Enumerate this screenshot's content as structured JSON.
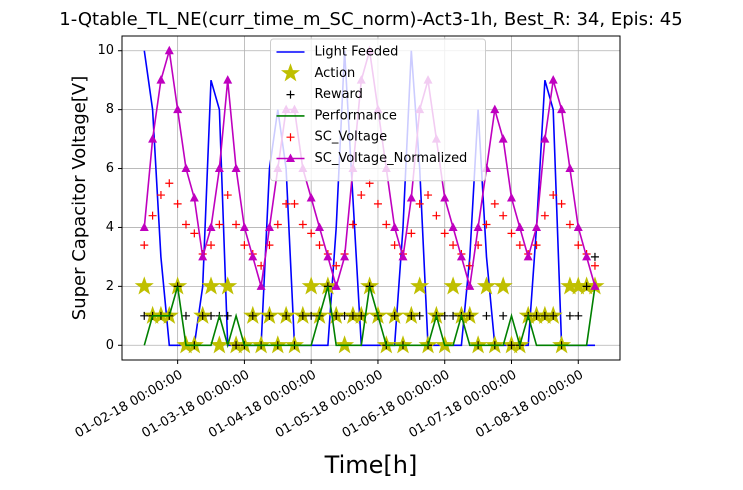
{
  "chart_data": {
    "type": "line",
    "title": "1-Qtable_TL_NE(curr_time_m_SC_norm)-Act3-1h, Best_R: 34, Epis: 45",
    "x_label": "Time[h]",
    "y_label": "Super Capacitor Voltage[V]",
    "x": [
      "01-01-18 12:00:00",
      "01-01-18 15:00:00",
      "01-01-18 18:00:00",
      "01-01-18 21:00:00",
      "01-02-18 00:00:00",
      "01-02-18 03:00:00",
      "01-02-18 06:00:00",
      "01-02-18 09:00:00",
      "01-02-18 12:00:00",
      "01-02-18 15:00:00",
      "01-02-18 18:00:00",
      "01-02-18 21:00:00",
      "01-03-18 00:00:00",
      "01-03-18 03:00:00",
      "01-03-18 06:00:00",
      "01-03-18 09:00:00",
      "01-03-18 12:00:00",
      "01-03-18 15:00:00",
      "01-03-18 18:00:00",
      "01-03-18 21:00:00",
      "01-04-18 00:00:00",
      "01-04-18 03:00:00",
      "01-04-18 06:00:00",
      "01-04-18 09:00:00",
      "01-04-18 12:00:00",
      "01-04-18 15:00:00",
      "01-04-18 18:00:00",
      "01-04-18 21:00:00",
      "01-05-18 00:00:00",
      "01-05-18 03:00:00",
      "01-05-18 06:00:00",
      "01-05-18 09:00:00",
      "01-05-18 12:00:00",
      "01-05-18 15:00:00",
      "01-05-18 18:00:00",
      "01-05-18 21:00:00",
      "01-06-18 00:00:00",
      "01-06-18 03:00:00",
      "01-06-18 06:00:00",
      "01-06-18 09:00:00",
      "01-06-18 12:00:00",
      "01-06-18 15:00:00",
      "01-06-18 18:00:00",
      "01-06-18 21:00:00",
      "01-07-18 00:00:00",
      "01-07-18 03:00:00",
      "01-07-18 06:00:00",
      "01-07-18 09:00:00",
      "01-07-18 12:00:00",
      "01-07-18 15:00:00",
      "01-07-18 18:00:00",
      "01-07-18 21:00:00",
      "01-08-18 00:00:00",
      "01-08-18 03:00:00",
      "01-08-18 06:00:00"
    ],
    "series": [
      {
        "name": "Light Feeded",
        "color": "#0000ff",
        "line": true,
        "marker": null,
        "values": [
          10,
          8,
          3,
          0,
          0,
          0,
          0,
          2,
          9,
          8,
          0,
          0,
          0,
          0,
          0,
          6,
          8,
          6,
          0,
          0,
          0,
          0,
          0,
          4,
          10,
          5,
          0,
          0,
          0,
          0,
          0,
          4,
          10,
          6,
          0,
          0,
          0,
          0,
          0,
          3,
          8,
          3,
          0,
          0,
          0,
          0,
          0,
          4,
          9,
          8,
          0,
          0,
          0,
          0,
          0
        ]
      },
      {
        "name": "Action",
        "color": "#bfbf00",
        "line": false,
        "marker": "star",
        "values": [
          2,
          1,
          1,
          1,
          2,
          0,
          0,
          1,
          2,
          0,
          2,
          0,
          0,
          1,
          0,
          1,
          0,
          1,
          0,
          1,
          2,
          1,
          2,
          1,
          0,
          1,
          1,
          2,
          1,
          0,
          1,
          0,
          1,
          2,
          0,
          1,
          0,
          2,
          1,
          1,
          0,
          2,
          0,
          2,
          0,
          0,
          1,
          1,
          1,
          1,
          0,
          2,
          2,
          2,
          2
        ]
      },
      {
        "name": "Reward",
        "color": "#000000",
        "line": false,
        "marker": "plus",
        "values": [
          1,
          1,
          1,
          1,
          2,
          1,
          0,
          1,
          1,
          1,
          1,
          0,
          0,
          1,
          0,
          1,
          0,
          1,
          0,
          1,
          1,
          1,
          2,
          1,
          1,
          1,
          1,
          2,
          1,
          0,
          1,
          0,
          1,
          1,
          0,
          1,
          1,
          1,
          1,
          1,
          0,
          1,
          0,
          1,
          0,
          0,
          1,
          1,
          1,
          1,
          0,
          1,
          1,
          2,
          3
        ]
      },
      {
        "name": "Performance",
        "color": "#008000",
        "line": true,
        "marker": null,
        "values": [
          0,
          1,
          1,
          1,
          2,
          0,
          0,
          0,
          0,
          1,
          0,
          1,
          0,
          0,
          0,
          0,
          0,
          0,
          0,
          0,
          0,
          1,
          2,
          0,
          0,
          0,
          0,
          2,
          1,
          0,
          0,
          0,
          0,
          0,
          0,
          1,
          0,
          0,
          1,
          0,
          0,
          0,
          0,
          0,
          1,
          0,
          1,
          0,
          0,
          0,
          0,
          0,
          0,
          0,
          2
        ]
      },
      {
        "name": "SC_Voltage",
        "color": "#ff0000",
        "line": false,
        "marker": "plus",
        "values": [
          3.4,
          4.4,
          5.1,
          5.5,
          4.8,
          4.1,
          3.8,
          3.1,
          3.4,
          4.1,
          5.1,
          4.1,
          3.4,
          3.1,
          2.7,
          3.4,
          4.1,
          4.8,
          4.8,
          4.1,
          3.8,
          3.4,
          3.1,
          2.7,
          3.1,
          4.1,
          5.1,
          5.5,
          4.8,
          4.1,
          3.4,
          3.1,
          3.8,
          4.8,
          5.1,
          4.4,
          3.8,
          3.4,
          3.1,
          2.7,
          3.4,
          4.1,
          4.8,
          4.4,
          3.8,
          3.4,
          3.1,
          3.4,
          4.4,
          5.1,
          4.8,
          4.1,
          3.4,
          3.1,
          2.7
        ]
      },
      {
        "name": "SC_Voltage_Normalized",
        "color": "#bf00bf",
        "line": true,
        "marker": "triangle",
        "values": [
          4,
          7,
          9,
          10,
          8,
          6,
          5,
          3,
          4,
          6,
          9,
          6,
          4,
          3,
          2,
          4,
          6,
          8,
          8,
          6,
          5,
          4,
          3,
          2,
          3,
          6,
          9,
          10,
          8,
          6,
          4,
          3,
          5,
          8,
          9,
          7,
          5,
          4,
          3,
          2,
          4,
          6,
          8,
          7,
          5,
          4,
          3,
          4,
          7,
          9,
          8,
          6,
          4,
          3,
          2
        ]
      }
    ],
    "xlim": [
      "01-01-18 04:00:00",
      "01-08-18 15:00:00"
    ],
    "xticks": [
      "01-02-18 00:00:00",
      "01-03-18 00:00:00",
      "01-04-18 00:00:00",
      "01-05-18 00:00:00",
      "01-06-18 00:00:00",
      "01-07-18 00:00:00",
      "01-08-18 00:00:00"
    ],
    "ylim": [
      -0.5,
      10.5
    ],
    "yticks": [
      0,
      2,
      4,
      6,
      8,
      10
    ],
    "grid": true,
    "legend": "upper center"
  }
}
